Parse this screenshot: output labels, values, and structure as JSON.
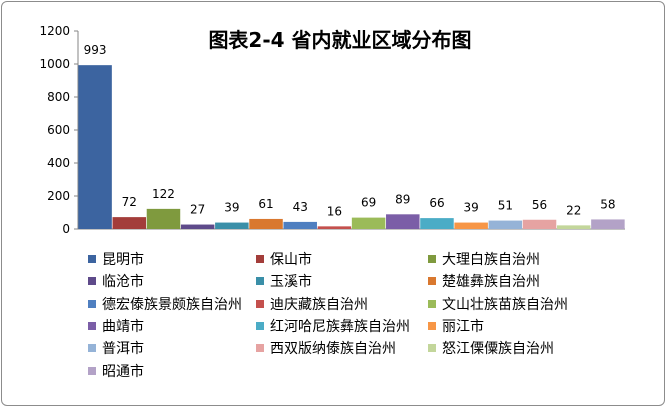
{
  "chart_data": {
    "type": "bar",
    "title": "图表2-4  省内就业区域分布图",
    "xlabel": "",
    "ylabel": "",
    "ylim": [
      0,
      1200
    ],
    "yticks": [
      0,
      200,
      400,
      600,
      800,
      1000,
      1200
    ],
    "grid": false,
    "legend_position": "bottom",
    "categories": [
      "昆明市",
      "保山市",
      "大理白族自治州",
      "临沧市",
      "玉溪市",
      "楚雄彝族自治州",
      "德宏傣族景颇族自治州",
      "迪庆藏族自治州",
      "文山壮族苗族自治州",
      "曲靖市",
      "红河哈尼族彝族自治州",
      "丽江市",
      "普洱市",
      "西双版纳傣族自治州",
      "怒江傈僳族自治州",
      "昭通市"
    ],
    "values": [
      993,
      72,
      122,
      27,
      39,
      61,
      43,
      16,
      69,
      89,
      66,
      39,
      51,
      56,
      22,
      58
    ],
    "colors": [
      "#3C64A0",
      "#A33D3A",
      "#7F9A3E",
      "#5E4A8A",
      "#3A8FA8",
      "#D9782F",
      "#4F7FC0",
      "#C4504D",
      "#9BBB59",
      "#7B5EA7",
      "#4BACC6",
      "#F79646",
      "#95B3D7",
      "#E6A3A2",
      "#C3D69B",
      "#B3A2C7"
    ]
  }
}
